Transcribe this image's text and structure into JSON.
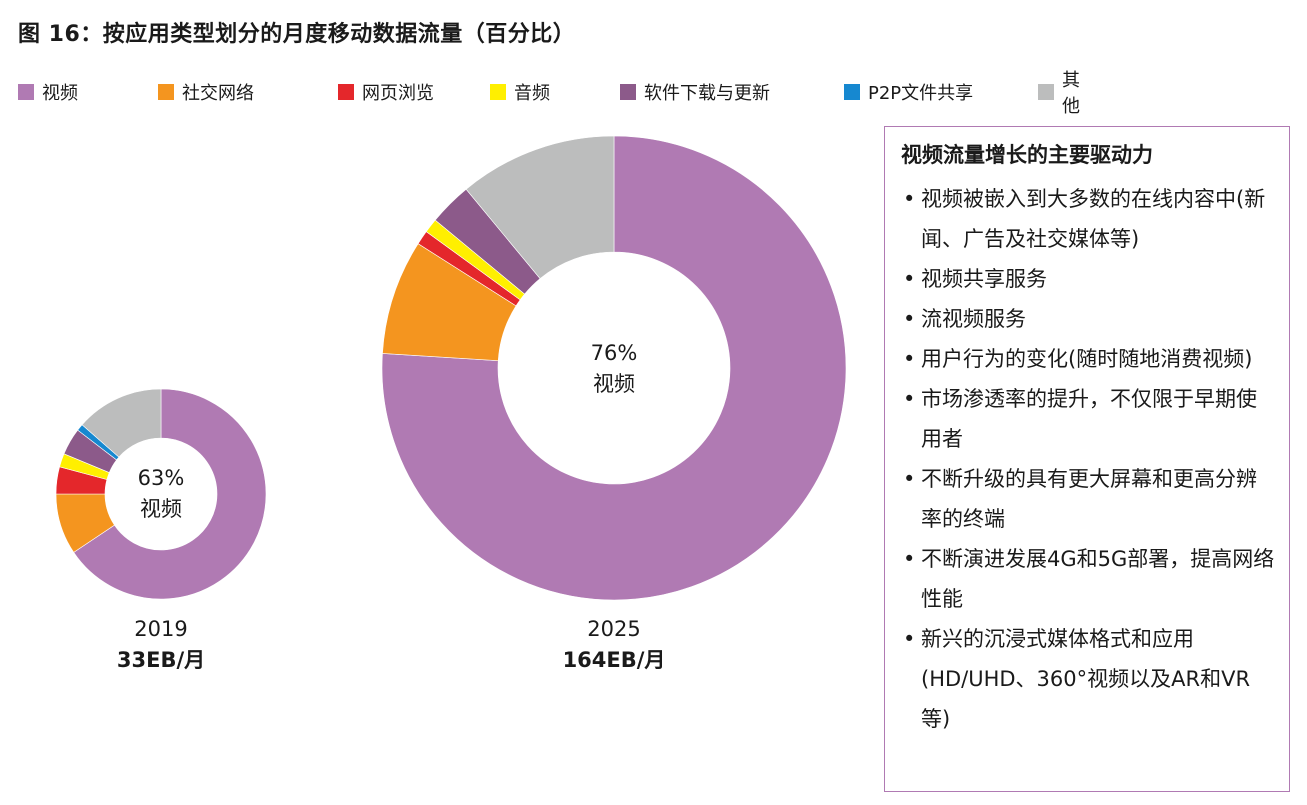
{
  "title": "图 16：按应用类型划分的月度移动数据流量（百分比）",
  "legend": [
    {
      "label": "视频",
      "color": "#b07ab3"
    },
    {
      "label": "社交网络",
      "color": "#f4951f"
    },
    {
      "label": "网页浏览",
      "color": "#e4272b"
    },
    {
      "label": "音频",
      "color": "#ffef00"
    },
    {
      "label": "软件下载与更新",
      "color": "#8c5a8a"
    },
    {
      "label": "P2P文件共享",
      "color": "#1688d0"
    },
    {
      "label": "其他",
      "color": "#bcbdbd"
    }
  ],
  "chart_data": [
    {
      "type": "pie",
      "donut": true,
      "year": "2019",
      "total": "33EB/月",
      "center_line1": "63%",
      "center_line2": "视频",
      "slices": [
        {
          "name": "视频",
          "value": 63
        },
        {
          "name": "社交网络",
          "value": 9
        },
        {
          "name": "网页浏览",
          "value": 4
        },
        {
          "name": "音频",
          "value": 2
        },
        {
          "name": "软件下载与更新",
          "value": 4
        },
        {
          "name": "P2P文件共享",
          "value": 1
        },
        {
          "name": "其他",
          "value": 13
        }
      ]
    },
    {
      "type": "pie",
      "donut": true,
      "year": "2025",
      "total": "164EB/月",
      "center_line1": "76%",
      "center_line2": "视频",
      "slices": [
        {
          "name": "视频",
          "value": 76
        },
        {
          "name": "社交网络",
          "value": 8
        },
        {
          "name": "网页浏览",
          "value": 1
        },
        {
          "name": "音频",
          "value": 1
        },
        {
          "name": "软件下载与更新",
          "value": 3
        },
        {
          "name": "P2P文件共享",
          "value": 0
        },
        {
          "name": "其他",
          "value": 11
        }
      ]
    }
  ],
  "sidebar": {
    "title": "视频流量增长的主要驱动力",
    "items": [
      "视频被嵌入到大多数的在线内容中(新闻、广告及社交媒体等)",
      "视频共享服务",
      "流视频服务",
      "用户行为的变化(随时随地消费视频)",
      "市场渗透率的提升，不仅限于早期使用者",
      "不断升级的具有更大屏幕和更高分辨率的终端",
      "不断演进发展4G和5G部署，提高网络性能",
      "新兴的沉浸式媒体格式和应用(HD/UHD、360°视频以及AR和VR等)"
    ]
  }
}
